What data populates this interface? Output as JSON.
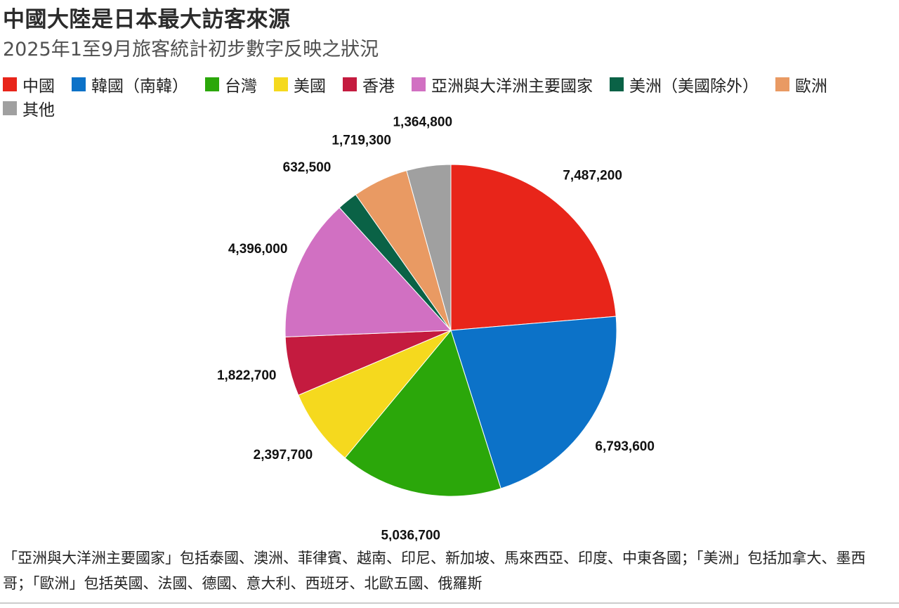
{
  "title": "中國大陸是日本最大訪客來源",
  "subtitle": "2025年1至9月旅客統計初步數字反映之狀況",
  "chart_data": {
    "type": "pie",
    "legend_position": "top",
    "slices": [
      {
        "label": "中國",
        "value": 7487200,
        "value_label": "7,487,200",
        "color": "#e8251a"
      },
      {
        "label": "韓國（南韓）",
        "value": 6793600,
        "value_label": "6,793,600",
        "color": "#0c72c8"
      },
      {
        "label": "台灣",
        "value": 5036700,
        "value_label": "5,036,700",
        "color": "#2ba70a"
      },
      {
        "label": "美國",
        "value": 2397700,
        "value_label": "2,397,700",
        "color": "#f5d91e"
      },
      {
        "label": "香港",
        "value": 1822700,
        "value_label": "1,822,700",
        "color": "#c41b3f"
      },
      {
        "label": "亞洲與大洋洲主要國家",
        "value": 4396000,
        "value_label": "4,396,000",
        "color": "#d170c2"
      },
      {
        "label": "美洲（美國除外）",
        "value": 632500,
        "value_label": "632,500",
        "color": "#0a6246"
      },
      {
        "label": "歐洲",
        "value": 1719300,
        "value_label": "1,719,300",
        "color": "#e99a63"
      },
      {
        "label": "其他",
        "value": 1364800,
        "value_label": "1,364,800",
        "color": "#a0a0a0"
      }
    ]
  },
  "footnote": "「亞洲與大洋洲主要國家」包括泰國、澳洲、菲律賓、越南、印尼、新加坡、馬來西亞、印度、中東各國；「美洲」包括加拿大、墨西哥；「歐洲」包括英國、法國、德國、意大利、西班牙、北歐五國、俄羅斯"
}
